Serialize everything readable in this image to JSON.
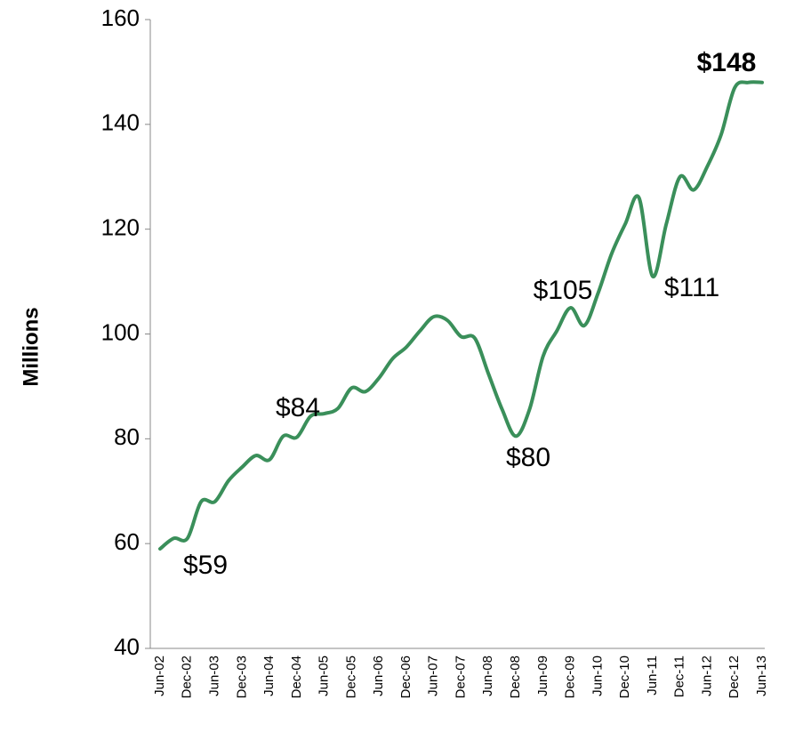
{
  "chart_data": {
    "type": "line",
    "y_label": "Millions",
    "categories": [
      "Jun-02",
      null,
      "Dec-02",
      null,
      "Jun-03",
      null,
      "Dec-03",
      null,
      "Jun-04",
      null,
      "Dec-04",
      null,
      "Jun-05",
      null,
      "Dec-05",
      null,
      "Jun-06",
      null,
      "Dec-06",
      null,
      "Jun-07",
      null,
      "Dec-07",
      null,
      "Jun-08",
      null,
      "Dec-08",
      null,
      "Jun-09",
      null,
      "Dec-09",
      null,
      "Jun-10",
      null,
      "Dec-10",
      null,
      "Jun-11",
      null,
      "Dec-11",
      null,
      "Jun-12",
      null,
      "Dec-12",
      null,
      "Jun-13"
    ],
    "series": [
      {
        "name": "Millions",
        "color": "#3a8f5a",
        "values": [
          59,
          61,
          61,
          68,
          68,
          72,
          74.6,
          76.8,
          76,
          80.5,
          80.3,
          84.3,
          84.8,
          85.8,
          89.7,
          89,
          91.6,
          95.3,
          97.5,
          100.6,
          103.3,
          102.6,
          99.5,
          99.2,
          92.4,
          85.6,
          80.5,
          85.6,
          95.8,
          100.6,
          105,
          101.6,
          107.7,
          115.3,
          121,
          126,
          111,
          121,
          130,
          127.5,
          132,
          138,
          147,
          148,
          148
        ]
      }
    ],
    "annotations": [
      {
        "text": "$59"
      },
      {
        "text": "$84"
      },
      {
        "text": "$80"
      },
      {
        "text": "$105"
      },
      {
        "text": "$111"
      },
      {
        "text": "$148",
        "bold": true
      }
    ],
    "ylim": [
      40,
      160
    ],
    "yticks": [
      40,
      60,
      80,
      100,
      120,
      140,
      160
    ],
    "grid": false
  }
}
